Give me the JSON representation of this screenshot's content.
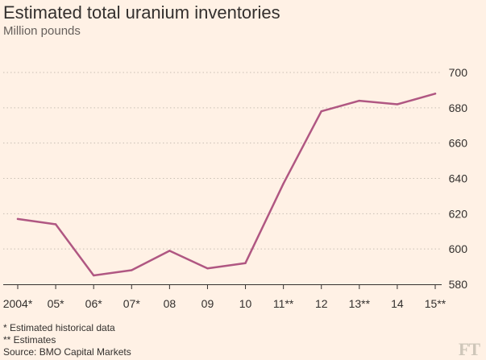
{
  "chart_data": {
    "type": "line",
    "title": "Estimated total uranium inventories",
    "subtitle": "Million pounds",
    "categories": [
      "2004*",
      "05*",
      "06*",
      "07*",
      "08",
      "09",
      "10",
      "11**",
      "12",
      "13**",
      "14",
      "15**"
    ],
    "series": [
      {
        "values": [
          617,
          614,
          585,
          588,
          599,
          589,
          592,
          637,
          678,
          684,
          682,
          688
        ],
        "color": "#b05782"
      }
    ],
    "ylim": [
      580,
      700
    ],
    "yticks": [
      580,
      600,
      620,
      640,
      660,
      680,
      700
    ],
    "y_axis_position": "right",
    "grid": "horizontal-dotted",
    "legend": "none"
  },
  "notes": [
    "* Estimated historical data",
    "** Estimates",
    "Source: BMO Capital Markets"
  ],
  "logo_text": "FT",
  "colors": {
    "background": "#fff1e5",
    "line": "#b05782",
    "grid": "#c8bfb4",
    "axis": "#33302e",
    "text": "#33302e",
    "muted": "#66605c"
  }
}
